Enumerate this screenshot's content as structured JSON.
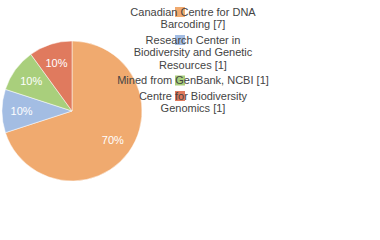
{
  "chart_data": {
    "type": "pie",
    "categories": [
      "Canadian Centre for DNA Barcoding [7]",
      "Research Center in Biodiversity and Genetic Resources [1]",
      "Mined from GenBank, NCBI [1]",
      "Centre for Biodiversity Genomics [1]"
    ],
    "values": [
      70,
      10,
      10,
      10
    ],
    "value_labels": [
      "70%",
      "10%",
      "10%",
      "10%"
    ],
    "colors": [
      "#f0aa6f",
      "#a3bde3",
      "#a9cf7c",
      "#e07a5e"
    ],
    "data_labels": true,
    "legend": "right"
  }
}
